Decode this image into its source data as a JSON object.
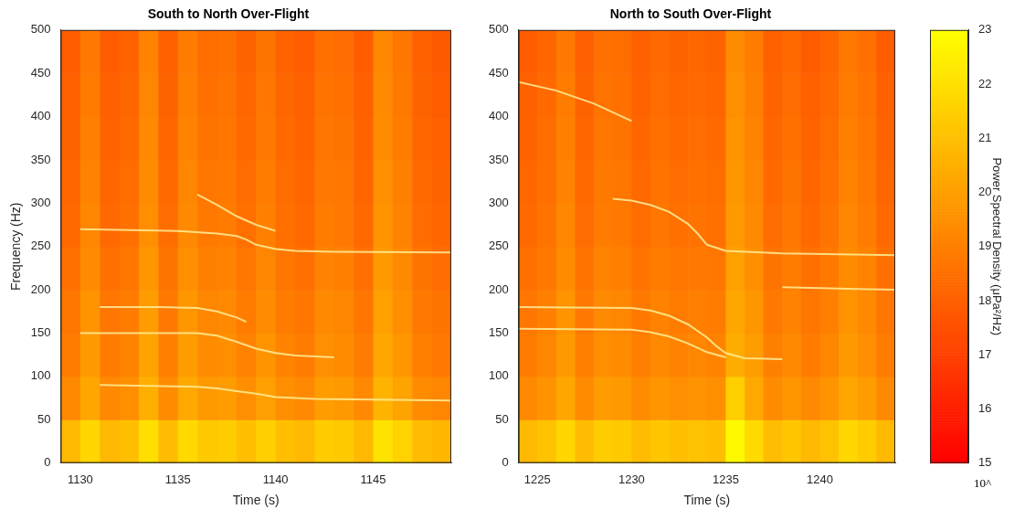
{
  "chart_data": [
    {
      "type": "heatmap",
      "title": "South to North Over-Flight",
      "x_label": "Time (s)",
      "y_label": "Frequency (Hz)",
      "xlim": [
        1129,
        1149
      ],
      "xticks": [
        1130,
        1135,
        1140,
        1145
      ],
      "ylim": [
        0,
        500
      ],
      "yticks": [
        0,
        50,
        100,
        150,
        200,
        250,
        300,
        350,
        400,
        450,
        500
      ],
      "grid": false,
      "x_edges": [
        1129,
        1130,
        1131,
        1132,
        1133,
        1134,
        1135,
        1136,
        1137,
        1138,
        1139,
        1140,
        1141,
        1142,
        1143,
        1144,
        1145,
        1146,
        1147,
        1148,
        1149
      ],
      "y_edges": [
        0,
        50,
        100,
        150,
        200,
        250,
        300,
        350,
        400,
        450,
        500
      ],
      "cells": [
        [
          20.8,
          21.7,
          20.8,
          21.0,
          22.0,
          20.9,
          21.8,
          21.3,
          21.4,
          21.0,
          21.5,
          21.0,
          20.8,
          21.4,
          21.3,
          20.8,
          22.1,
          21.6,
          20.9,
          20.7
        ],
        [
          19.3,
          20.2,
          19.3,
          19.5,
          20.5,
          19.4,
          20.3,
          19.8,
          19.9,
          19.5,
          20.0,
          19.5,
          19.3,
          19.9,
          19.8,
          19.3,
          20.6,
          20.1,
          19.4,
          19.2
        ],
        [
          18.9,
          19.8,
          18.9,
          19.1,
          20.1,
          19.0,
          19.9,
          19.4,
          19.5,
          19.1,
          19.6,
          19.1,
          18.9,
          19.5,
          19.4,
          18.9,
          20.2,
          19.7,
          19.0,
          18.8
        ],
        [
          18.7,
          19.6,
          18.7,
          18.9,
          19.9,
          18.8,
          19.7,
          19.2,
          19.3,
          18.9,
          19.4,
          18.9,
          18.7,
          19.3,
          19.2,
          18.7,
          20.0,
          19.5,
          18.8,
          18.6
        ],
        [
          18.5,
          19.4,
          18.5,
          18.7,
          19.7,
          18.6,
          19.5,
          19.0,
          19.1,
          18.7,
          19.2,
          18.7,
          18.5,
          19.1,
          19.0,
          18.5,
          19.8,
          19.3,
          18.6,
          18.4
        ],
        [
          18.3,
          19.2,
          18.3,
          18.5,
          19.5,
          18.4,
          19.3,
          18.8,
          18.9,
          18.5,
          19.0,
          18.5,
          18.3,
          18.9,
          18.8,
          18.3,
          19.6,
          19.1,
          18.4,
          18.2
        ],
        [
          18.2,
          19.1,
          18.2,
          18.4,
          19.4,
          18.3,
          19.2,
          18.7,
          18.8,
          18.4,
          18.9,
          18.4,
          18.2,
          18.8,
          18.7,
          18.2,
          19.5,
          19.0,
          18.3,
          18.1
        ],
        [
          18.1,
          19.0,
          18.1,
          18.3,
          19.3,
          18.2,
          19.1,
          18.6,
          18.7,
          18.3,
          18.8,
          18.3,
          18.1,
          18.7,
          18.6,
          18.1,
          19.4,
          18.9,
          18.2,
          18.0
        ],
        [
          18.0,
          18.9,
          18.0,
          18.2,
          19.2,
          18.1,
          19.0,
          18.5,
          18.6,
          18.2,
          18.7,
          18.2,
          18.0,
          18.6,
          18.5,
          18.0,
          19.3,
          18.8,
          18.1,
          17.9
        ],
        [
          17.9,
          18.8,
          17.9,
          18.1,
          19.1,
          18.0,
          18.9,
          18.4,
          18.5,
          18.1,
          18.6,
          18.1,
          17.9,
          18.5,
          18.4,
          17.9,
          19.2,
          18.7,
          18.0,
          17.8
        ]
      ],
      "tones": [
        {
          "x": [
            1130,
            1135,
            1137,
            1138,
            1138.5,
            1139,
            1140,
            1141,
            1143,
            1149
          ],
          "values": [
            270,
            268,
            265,
            262,
            258,
            252,
            247,
            245,
            244,
            243
          ]
        },
        {
          "x": [
            1136,
            1137,
            1138,
            1139,
            1140
          ],
          "values": [
            310,
            298,
            285,
            275,
            268
          ]
        },
        {
          "x": [
            1131,
            1134,
            1136,
            1137,
            1138,
            1138.5
          ],
          "values": [
            180,
            180,
            179,
            175,
            168,
            163
          ]
        },
        {
          "x": [
            1130,
            1136,
            1137,
            1138,
            1139,
            1140,
            1141,
            1143
          ],
          "values": [
            150,
            150,
            147,
            140,
            132,
            127,
            124,
            122
          ]
        },
        {
          "x": [
            1131,
            1136,
            1137,
            1138,
            1139,
            1140,
            1142,
            1146,
            1149
          ],
          "values": [
            90,
            88,
            86,
            83,
            80,
            76,
            74,
            73,
            72
          ]
        }
      ]
    },
    {
      "type": "heatmap",
      "title": "North to South Over-Flight",
      "x_label": "Time (s)",
      "xlim": [
        1224,
        1244
      ],
      "xticks": [
        1225,
        1230,
        1235,
        1240
      ],
      "ylim": [
        0,
        500
      ],
      "yticks": [
        0,
        50,
        100,
        150,
        200,
        250,
        300,
        350,
        400,
        450,
        500
      ],
      "grid": false,
      "x_edges": [
        1224,
        1225,
        1226,
        1227,
        1228,
        1229,
        1230,
        1231,
        1232,
        1233,
        1234,
        1235,
        1236,
        1237,
        1238,
        1239,
        1240,
        1241,
        1242,
        1243,
        1244
      ],
      "y_edges": [
        0,
        50,
        100,
        150,
        200,
        250,
        300,
        350,
        400,
        450,
        500
      ],
      "cells": [
        [
          20.8,
          21.1,
          21.7,
          20.9,
          21.4,
          21.3,
          20.9,
          21.2,
          21.0,
          21.1,
          21.0,
          22.8,
          21.8,
          20.9,
          21.2,
          20.8,
          21.1,
          21.7,
          21.4,
          20.8
        ],
        [
          19.3,
          19.6,
          20.2,
          19.4,
          19.9,
          19.8,
          19.4,
          19.7,
          19.5,
          19.6,
          19.5,
          21.5,
          20.3,
          19.4,
          19.7,
          19.3,
          19.6,
          20.2,
          19.9,
          19.3
        ],
        [
          18.9,
          19.2,
          19.8,
          19.0,
          19.5,
          19.4,
          19.0,
          19.3,
          19.1,
          19.2,
          19.1,
          20.4,
          19.9,
          19.0,
          19.3,
          18.9,
          19.2,
          19.8,
          19.5,
          18.9
        ],
        [
          18.7,
          19.0,
          19.6,
          18.8,
          19.3,
          19.2,
          18.8,
          19.1,
          18.9,
          19.0,
          18.9,
          20.2,
          19.7,
          18.8,
          19.1,
          18.7,
          19.0,
          19.6,
          19.3,
          18.7
        ],
        [
          18.5,
          18.8,
          19.4,
          18.6,
          19.1,
          19.0,
          18.6,
          18.9,
          18.7,
          18.8,
          18.7,
          20.0,
          19.5,
          18.6,
          18.9,
          18.5,
          18.8,
          19.4,
          19.1,
          18.5
        ],
        [
          18.3,
          18.6,
          19.2,
          18.4,
          18.9,
          18.8,
          18.4,
          18.7,
          18.5,
          18.6,
          18.5,
          19.8,
          19.3,
          18.4,
          18.7,
          18.3,
          18.6,
          19.2,
          18.9,
          18.3
        ],
        [
          18.2,
          18.5,
          19.1,
          18.3,
          18.8,
          18.7,
          18.3,
          18.6,
          18.4,
          18.5,
          18.4,
          19.7,
          19.2,
          18.3,
          18.6,
          18.2,
          18.5,
          19.1,
          18.8,
          18.2
        ],
        [
          18.1,
          18.4,
          19.0,
          18.2,
          18.7,
          18.6,
          18.2,
          18.5,
          18.3,
          18.4,
          18.3,
          19.6,
          19.1,
          18.2,
          18.5,
          18.1,
          18.4,
          19.0,
          18.7,
          18.1
        ],
        [
          18.0,
          18.3,
          18.9,
          18.1,
          18.6,
          18.5,
          18.1,
          18.4,
          18.2,
          18.3,
          18.2,
          19.5,
          19.0,
          18.1,
          18.4,
          18.0,
          18.3,
          18.9,
          18.6,
          18.0
        ],
        [
          17.9,
          18.2,
          18.8,
          18.0,
          18.5,
          18.4,
          18.0,
          18.3,
          18.1,
          18.2,
          18.1,
          19.4,
          18.9,
          18.0,
          18.3,
          17.9,
          18.2,
          18.8,
          18.5,
          17.9
        ]
      ],
      "tones": [
        {
          "x": [
            1229,
            1230,
            1231,
            1232,
            1233,
            1233.5,
            1234,
            1235,
            1238,
            1244
          ],
          "values": [
            305,
            303,
            298,
            290,
            276,
            265,
            252,
            245,
            242,
            240
          ]
        },
        {
          "x": [
            1224,
            1230,
            1231,
            1232,
            1233,
            1234,
            1234.5,
            1235,
            1236,
            1238
          ],
          "values": [
            180,
            179,
            176,
            170,
            160,
            145,
            135,
            127,
            121,
            120
          ]
        },
        {
          "x": [
            1224,
            1230,
            1231,
            1232,
            1233,
            1234,
            1235
          ],
          "values": [
            155,
            154,
            151,
            146,
            138,
            128,
            122
          ]
        },
        {
          "x": [
            1238,
            1240,
            1242,
            1244
          ],
          "values": [
            203,
            202,
            201,
            200
          ]
        },
        {
          "x": [
            1224,
            1226,
            1228,
            1230
          ],
          "values": [
            440,
            430,
            415,
            395
          ]
        }
      ],
      "colorbar": {
        "range": [
          15,
          23
        ],
        "ticks": [
          15,
          16,
          17,
          18,
          19,
          20,
          21,
          22,
          23
        ],
        "label": "Power Spectral Density (μPa²/Hz)",
        "exponent_label": "10^"
      }
    }
  ]
}
